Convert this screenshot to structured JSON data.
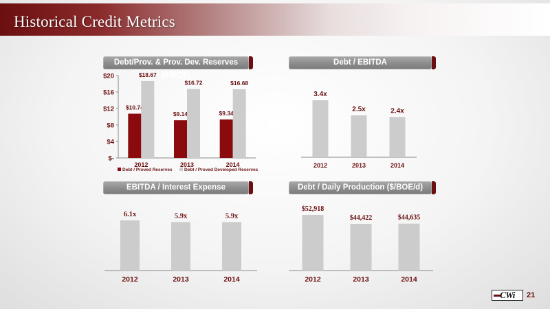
{
  "page": {
    "title": "Historical Credit Metrics",
    "page_number": "21",
    "logo_text": "CWi"
  },
  "colors": {
    "brand": "#6b0f10",
    "bar_red": "#8b0a0d",
    "bar_gray": "#cccccc",
    "value_text": "#6b0f10"
  },
  "chart_data": [
    {
      "type": "bar",
      "title": "Debt/Prov. & Prov. Dev. Reserves ($/BOE)",
      "categories": [
        "2012",
        "2013",
        "2014"
      ],
      "series": [
        {
          "name": "Debt / Proved Reserves",
          "values": [
            10.74,
            9.14,
            9.34
          ],
          "labels": [
            "$10.74",
            "$9.14",
            "$9.34"
          ]
        },
        {
          "name": "Debt / Proved Developed Reserves",
          "values": [
            18.67,
            16.72,
            16.68
          ],
          "labels": [
            "$18.67",
            "$16.72",
            "$16.68"
          ]
        }
      ],
      "ylim": [
        0,
        20
      ],
      "yticks": [
        0,
        4,
        8,
        12,
        16,
        20
      ],
      "ytick_labels": [
        "$-",
        "$4",
        "$8",
        "$12",
        "$16",
        "$20"
      ],
      "legend": "bottom"
    },
    {
      "type": "bar",
      "title": "Debt / EBITDA",
      "categories": [
        "2012",
        "2013",
        "2014"
      ],
      "series": [
        {
          "values": [
            3.4,
            2.5,
            2.4
          ],
          "labels": [
            "3.4x",
            "2.5x",
            "2.4x"
          ]
        }
      ]
    },
    {
      "type": "bar",
      "title": "EBITDA / Interest Expense",
      "categories": [
        "2012",
        "2013",
        "2014"
      ],
      "series": [
        {
          "values": [
            6.1,
            5.9,
            5.9
          ],
          "labels": [
            "6.1x",
            "5.9x",
            "5.9x"
          ]
        }
      ]
    },
    {
      "type": "bar",
      "title": "Debt / Daily Production ($/BOE/d)",
      "categories": [
        "2012",
        "2013",
        "2014"
      ],
      "series": [
        {
          "values": [
            52918,
            44422,
            44635
          ],
          "labels": [
            "$52,918",
            "$44,422",
            "$44,635"
          ]
        }
      ]
    }
  ]
}
